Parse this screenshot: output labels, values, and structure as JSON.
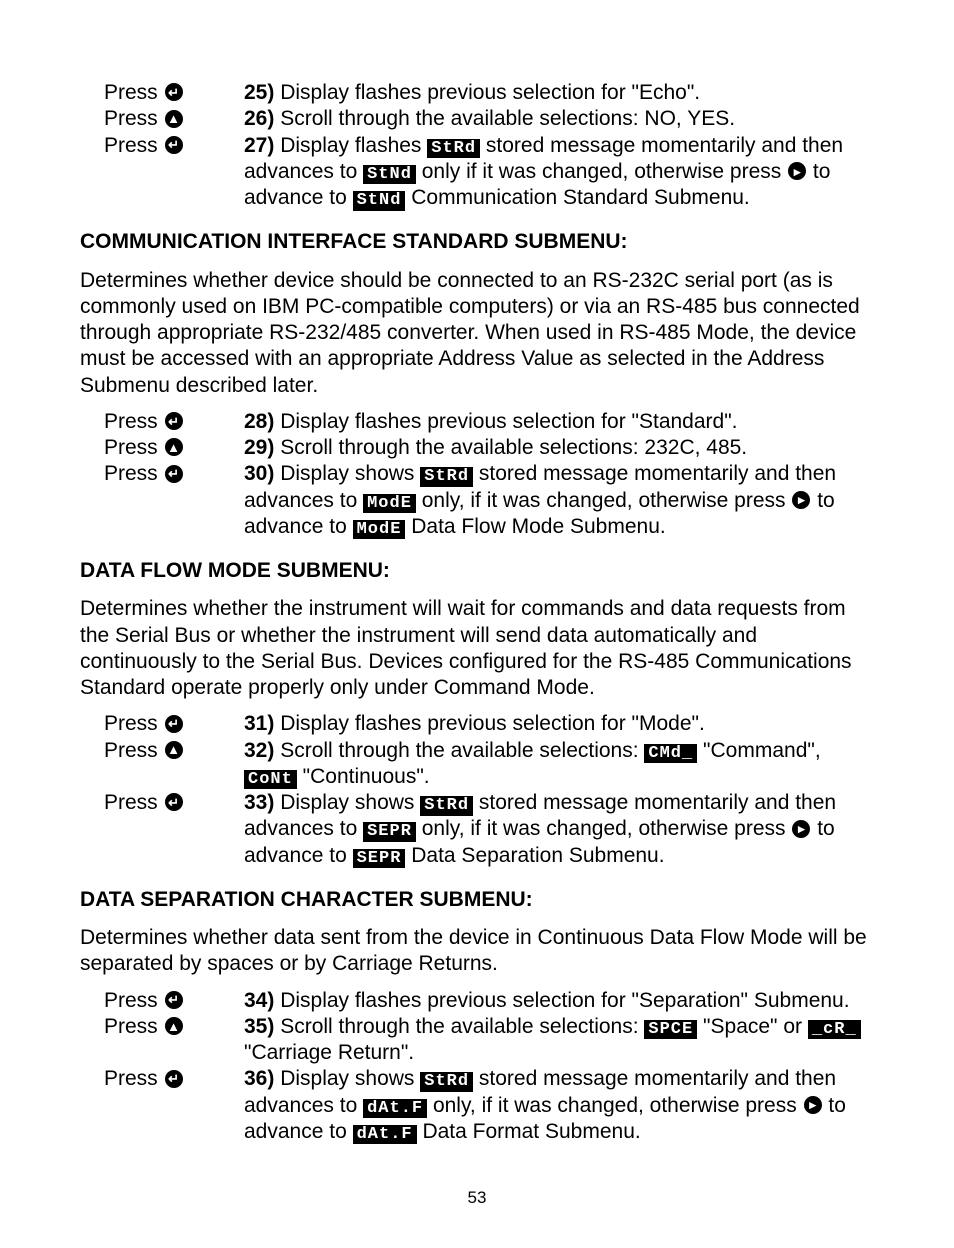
{
  "press_label": "Press",
  "icons": {
    "enter": "↵",
    "up": "▲",
    "right": "▸"
  },
  "lcd": {
    "strd": "StRd",
    "stnd": "StNd",
    "mode": "ModE",
    "cmd": "CMd_",
    "cont": "CoNt",
    "sepr": "SEPR",
    "spce": "SPCE",
    "cr": "_cR_",
    "datf": "dAt.F"
  },
  "sections": {
    "top_steps": [
      {
        "num": "25)",
        "icon": "enter",
        "text_a": " Display flashes previous selection for \"Echo\"."
      },
      {
        "num": "26)",
        "icon": "up",
        "text_a": " Scroll through the available selections: NO, YES."
      }
    ],
    "step27": {
      "num": "27)",
      "icon": "enter",
      "t1": " Display flashes ",
      "t2": " stored message momentarily and then advances to ",
      "t3": " only if it was changed, otherwise press ",
      "t4": " to advance to ",
      "t5": " Communication Standard Submenu."
    },
    "comm_heading": "COMMUNICATION INTERFACE STANDARD SUBMENU:",
    "comm_para": "Determines whether device should be connected to an RS-232C serial port (as is commonly used on IBM PC-compatible computers) or via an RS-485 bus connected through appropriate RS-232/485 converter. When used in RS-485 Mode, the device must be accessed with an appropriate Address Value as selected in the Address Submenu described later.",
    "comm_steps": [
      {
        "num": "28)",
        "icon": "enter",
        "text_a": " Display flashes previous selection for \"Standard\"."
      },
      {
        "num": "29)",
        "icon": "up",
        "text_a": " Scroll through the available selections: 232C, 485."
      }
    ],
    "step30": {
      "num": "30)",
      "icon": "enter",
      "t1": " Display shows ",
      "t2": " stored message momentarily and then advances to ",
      "t3": "  only, if it was changed, otherwise press ",
      "t4": " to advance to ",
      "t5": "  Data Flow Mode Submenu."
    },
    "flow_heading": "DATA FLOW MODE SUBMENU:",
    "flow_para": "Determines whether the instrument will wait for commands and data requests from the Serial Bus or whether the instrument will send data automatically and continuously to the Serial Bus. Devices configured for the RS-485 Communications Standard operate properly only under Command Mode.",
    "step31": {
      "num": "31)",
      "icon": "enter",
      "text_a": " Display flashes previous selection for \"Mode\"."
    },
    "step32": {
      "num": "32)",
      "icon": "up",
      "t1": " Scroll through the available selections: ",
      "t2": " \"Command\", ",
      "t3": "  \"Continuous\"."
    },
    "step33": {
      "num": "33)",
      "icon": "enter",
      "t1": " Display shows ",
      "t2": " stored message momentarily and then advances to ",
      "t3": " only, if it was changed, otherwise press ",
      "t4": " to advance to ",
      "t5": " Data Separation Submenu."
    },
    "sep_heading": "DATA SEPARATION CHARACTER SUBMENU:",
    "sep_para": "Determines whether data sent from the device in Continuous Data Flow Mode will be separated by spaces or by Carriage Returns.",
    "step34": {
      "num": "34)",
      "icon": "enter",
      "text_a": " Display flashes previous selection for \"Separation\" Submenu."
    },
    "step35": {
      "num": "35)",
      "icon": "up",
      "t1": " Scroll through the available selections: ",
      "t2": " \"Space\" or ",
      "t3": " \"Carriage Return\"."
    },
    "step36": {
      "num": "36)",
      "icon": "enter",
      "t1": " Display shows ",
      "t2": " stored message momentarily and then advances to ",
      "t3": " only, if it was changed, otherwise press ",
      "t4": " to advance to ",
      "t5": " Data Format Submenu."
    }
  },
  "page_number": "53"
}
